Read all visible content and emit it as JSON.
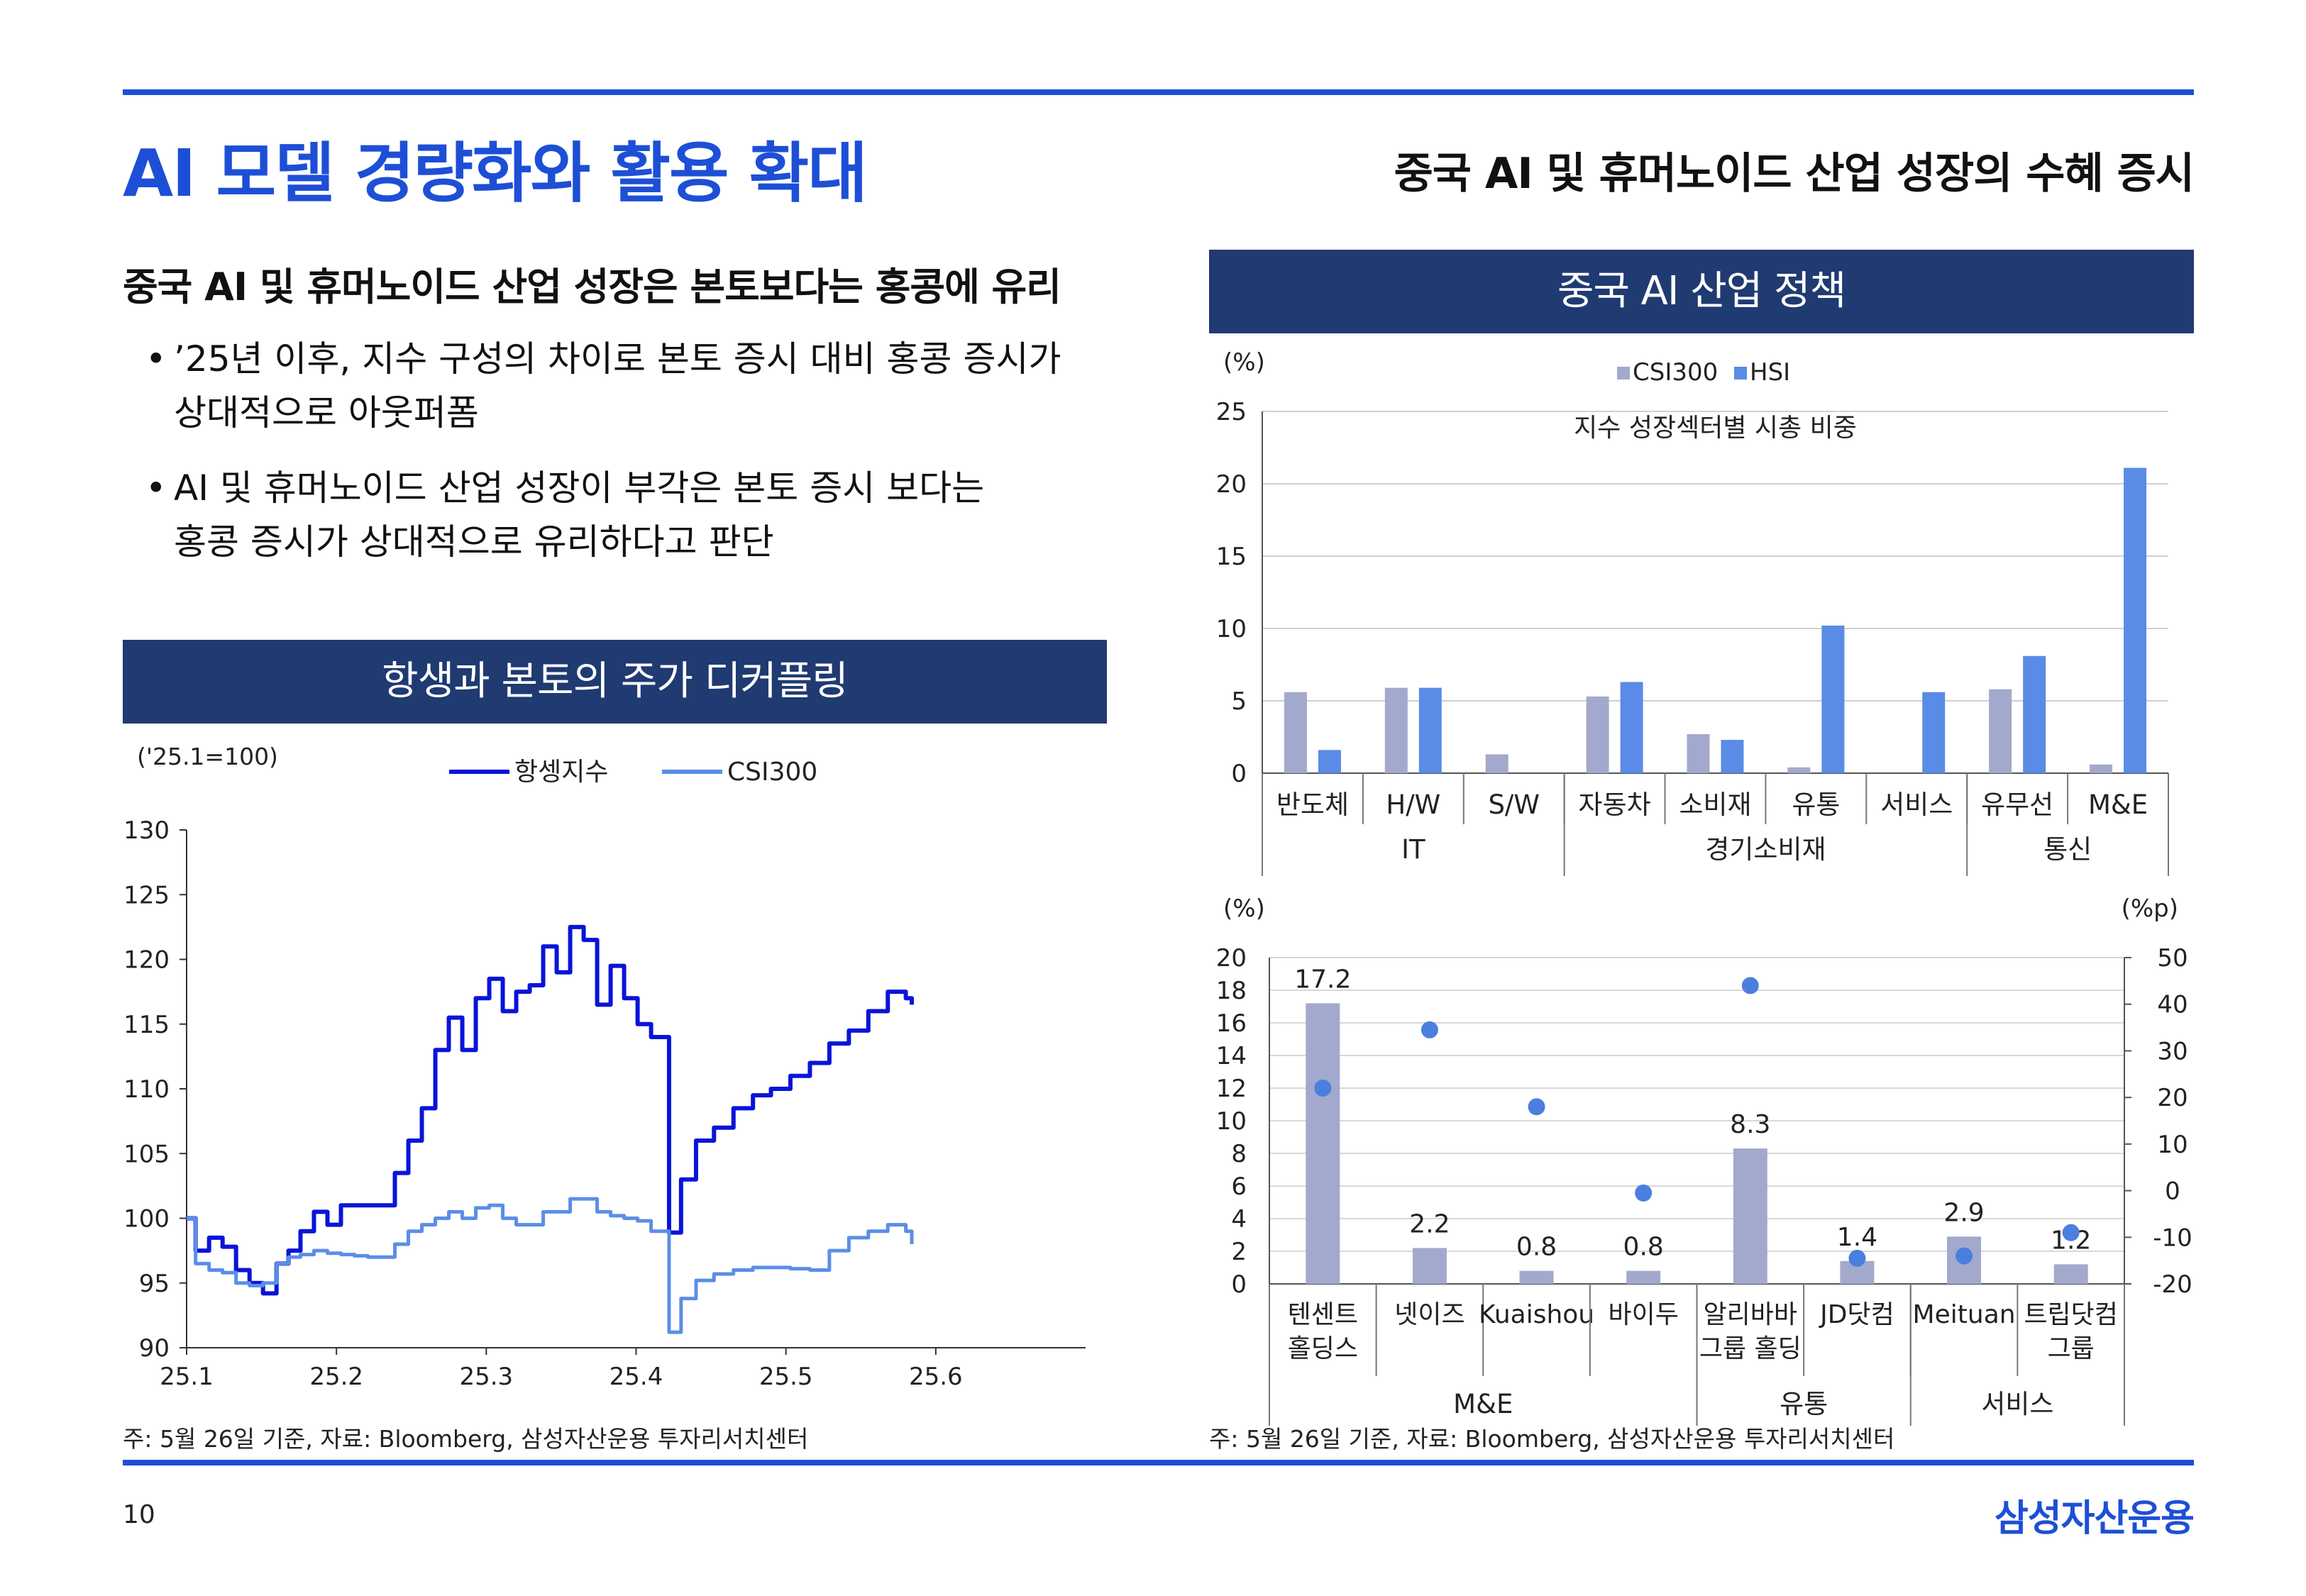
{
  "page": {
    "title": "AI 모델 경량화와 활용 확대",
    "subtitle": "중국 AI 및 휴머노이드 산업 성장의 수혜 증시",
    "page_number": "10",
    "brand": "삼성자산운용"
  },
  "left": {
    "headline": "중국 AI 및 휴머노이드 산업 성장은 본토보다는 홍콩에 유리",
    "bullet_mark": "•",
    "bullets": [
      {
        "line1": "’25년 이후, 지수 구성의 차이로 본토 증시 대비 홍콩 증시가",
        "line2": "상대적으로 아웃퍼폼"
      },
      {
        "line1": "AI 및 휴머노이드 산업 성장이 부각은 본토 증시 보다는",
        "line2": "홍콩 증시가 상대적으로 유리하다고 판단"
      }
    ],
    "chart_banner": "항생과 본토의 주가 디커플링",
    "note": "주: 5월 26일 기준, 자료: Bloomberg, 삼성자산운용 투자리서치센터"
  },
  "right": {
    "banner": "중국 AI 산업 정책",
    "note": "주: 5월 26일 기준, 자료: Bloomberg, 삼성자산운용 투자리서치센터"
  },
  "colors": {
    "accent": "#1d4fd6",
    "banner": "#203a72",
    "hsi_line": "#0a14d8",
    "csi_line": "#5b8ee6",
    "csi_bar": "#a3a9cc",
    "hsi_bar": "#5a8be6",
    "dot": "#4a7fe0"
  },
  "chart_data": [
    {
      "type": "line",
      "id": "decoupling",
      "unit_label": "('25.1=100)",
      "ylim": [
        90,
        130
      ],
      "yticks": [
        "90",
        "95",
        "100",
        "105",
        "110",
        "115",
        "120",
        "125",
        "130"
      ],
      "xlim": [
        25.1,
        25.7
      ],
      "xticks": [
        "25.1",
        "25.2",
        "25.3",
        "25.4",
        "25.5",
        "25.6"
      ],
      "legend": [
        "항셍지수",
        "CSI300"
      ],
      "series": [
        {
          "name": "항셍지수",
          "x": [
            25.1,
            25.106,
            25.115,
            25.124,
            25.133,
            25.142,
            25.151,
            25.16,
            25.168,
            25.176,
            25.185,
            25.194,
            25.203,
            25.212,
            25.221,
            25.23,
            25.239,
            25.248,
            25.257,
            25.266,
            25.275,
            25.284,
            25.293,
            25.302,
            25.311,
            25.32,
            25.329,
            25.338,
            25.347,
            25.356,
            25.365,
            25.374,
            25.383,
            25.392,
            25.401,
            25.41,
            25.416,
            25.422,
            25.43,
            25.44,
            25.452,
            25.465,
            25.478,
            25.49,
            25.503,
            25.516,
            25.529,
            25.542,
            25.555,
            25.568,
            25.575,
            25.58,
            25.584
          ],
          "values": [
            100,
            97.5,
            98.5,
            97.8,
            96,
            95,
            94.2,
            96.5,
            97.5,
            99,
            100.5,
            99.5,
            101,
            101,
            101,
            101,
            103.5,
            106,
            108.5,
            113,
            115.5,
            113,
            117,
            118.5,
            116,
            117.5,
            118,
            121,
            119,
            122.5,
            121.5,
            116.5,
            119.5,
            117,
            115,
            114,
            114,
            98.9,
            103,
            106,
            107,
            108.5,
            109.5,
            110,
            111,
            112,
            113.5,
            114.5,
            116,
            117.5,
            117.5,
            117,
            116.5
          ]
        },
        {
          "name": "CSI300",
          "x": [
            25.1,
            25.106,
            25.115,
            25.124,
            25.133,
            25.142,
            25.151,
            25.16,
            25.168,
            25.176,
            25.185,
            25.194,
            25.203,
            25.212,
            25.221,
            25.23,
            25.239,
            25.248,
            25.257,
            25.266,
            25.275,
            25.284,
            25.293,
            25.302,
            25.311,
            25.32,
            25.329,
            25.338,
            25.347,
            25.356,
            25.365,
            25.374,
            25.383,
            25.392,
            25.401,
            25.41,
            25.416,
            25.422,
            25.43,
            25.44,
            25.452,
            25.465,
            25.478,
            25.49,
            25.503,
            25.516,
            25.529,
            25.542,
            25.555,
            25.568,
            25.575,
            25.58,
            25.584
          ],
          "values": [
            100,
            96.5,
            96,
            95.8,
            95,
            94.8,
            95,
            96.5,
            97,
            97.2,
            97.5,
            97.3,
            97.2,
            97.1,
            97,
            97,
            98,
            99,
            99.5,
            100,
            100.5,
            100,
            100.8,
            101,
            100,
            99.5,
            99.5,
            100.5,
            100.5,
            101.5,
            101.5,
            100.5,
            100.2,
            100,
            99.8,
            99,
            99,
            91.2,
            93.8,
            95.2,
            95.7,
            96,
            96.2,
            96.2,
            96.1,
            96,
            97.5,
            98.5,
            99,
            99.5,
            99.5,
            99,
            98
          ]
        }
      ]
    },
    {
      "type": "bar",
      "id": "sector-weights",
      "unit_label": "(%)",
      "title": "지수 성장섹터별 시총 비중",
      "ylim": [
        0,
        25
      ],
      "yticks": [
        "0",
        "5",
        "10",
        "15",
        "20",
        "25"
      ],
      "categories": [
        "반도체",
        "H/W",
        "S/W",
        "자동차",
        "소비재",
        "유통",
        "서비스",
        "유무선",
        "M&E"
      ],
      "groups": [
        {
          "label": "IT",
          "span": 3
        },
        {
          "label": "경기소비재",
          "span": 4
        },
        {
          "label": "통신",
          "span": 2
        }
      ],
      "series": [
        {
          "name": "CSI300",
          "values": [
            5.6,
            5.9,
            1.3,
            5.3,
            2.7,
            0.4,
            0,
            5.8,
            0.6
          ]
        },
        {
          "name": "HSI",
          "values": [
            1.6,
            5.9,
            0,
            6.3,
            2.3,
            10.2,
            5.6,
            8.1,
            21.1
          ]
        }
      ]
    },
    {
      "type": "bar",
      "id": "company-weights",
      "unit_label_left": "(%)",
      "unit_label_right": "(%p)",
      "ylim": [
        0,
        20
      ],
      "yticks": [
        "0",
        "2",
        "4",
        "6",
        "8",
        "10",
        "12",
        "14",
        "16",
        "18",
        "20"
      ],
      "y2lim": [
        -20,
        50
      ],
      "y2ticks": [
        "-20",
        "-10",
        "0",
        "10",
        "20",
        "30",
        "40",
        "50"
      ],
      "categories": [
        [
          "텐센트",
          "홀딩스"
        ],
        [
          "넷이즈"
        ],
        [
          "Kuaishou"
        ],
        [
          "바이두"
        ],
        [
          "알리바바",
          "그룹 홀딩"
        ],
        [
          "JD닷컴"
        ],
        [
          "Meituan"
        ],
        [
          "트립닷컴",
          "그룹"
        ]
      ],
      "groups": [
        {
          "label": "M&E",
          "span": 4
        },
        {
          "label": "유통",
          "span": 2
        },
        {
          "label": "서비스",
          "span": 2
        }
      ],
      "bars": [
        17.2,
        2.2,
        0.8,
        0.8,
        8.3,
        1.4,
        2.9,
        1.2
      ],
      "bar_labels": [
        "17.2",
        "2.2",
        "0.8",
        "0.8",
        "8.3",
        "1.4",
        "2.9",
        "1.2"
      ],
      "dots": [
        22,
        34.5,
        18,
        -0.5,
        44,
        -14.5,
        -14,
        -9
      ]
    }
  ]
}
